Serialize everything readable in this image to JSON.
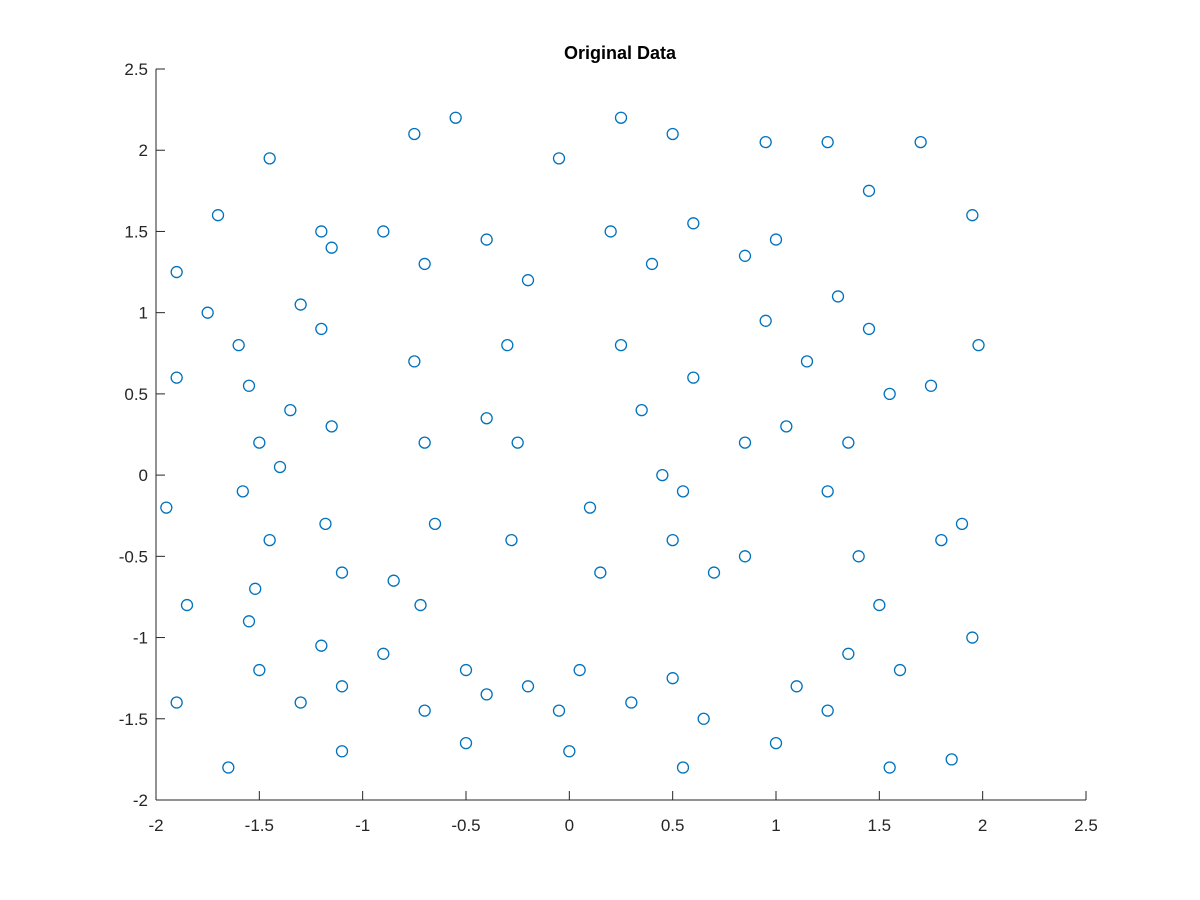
{
  "chart_data": {
    "type": "scatter",
    "title": "Original Data",
    "xlabel": "",
    "ylabel": "",
    "xlim": [
      -2,
      2.5
    ],
    "ylim": [
      -2,
      2.5
    ],
    "x_ticks": [
      -2,
      -1.5,
      -1,
      -0.5,
      0,
      0.5,
      1,
      1.5,
      2,
      2.5
    ],
    "y_ticks": [
      -2,
      -1.5,
      -1,
      -0.5,
      0,
      0.5,
      1,
      1.5,
      2,
      2.5
    ],
    "x_tick_labels": [
      "-2",
      "-1.5",
      "-1",
      "-0.5",
      "0",
      "0.5",
      "1",
      "1.5",
      "2",
      "2.5"
    ],
    "y_tick_labels": [
      "-2",
      "-1.5",
      "-1",
      "-0.5",
      "0",
      "0.5",
      "1",
      "1.5",
      "2",
      "2.5"
    ],
    "grid": false,
    "marker": "circle-open",
    "marker_color": "#0072BD",
    "series": [
      {
        "points": [
          [
            -1.55,
            0.55
          ],
          [
            -1.5,
            0.2
          ],
          [
            -1.58,
            -0.1
          ],
          [
            -1.45,
            -0.4
          ],
          [
            -1.52,
            -0.7
          ],
          [
            -1.6,
            0.8
          ],
          [
            -1.4,
            0.05
          ],
          [
            -1.55,
            -0.9
          ],
          [
            -1.5,
            -1.2
          ],
          [
            -1.3,
            -1.4
          ],
          [
            -1.1,
            -1.3
          ],
          [
            -0.9,
            -1.1
          ],
          [
            -0.7,
            -1.45
          ],
          [
            -0.5,
            -1.2
          ],
          [
            -0.4,
            -1.35
          ],
          [
            -1.2,
            -1.05
          ],
          [
            -1.15,
            1.4
          ],
          [
            -0.9,
            1.5
          ],
          [
            -0.7,
            1.3
          ],
          [
            -0.4,
            1.45
          ],
          [
            -0.2,
            1.2
          ],
          [
            -1.2,
            0.9
          ],
          [
            -1.15,
            0.3
          ],
          [
            -1.18,
            -0.3
          ],
          [
            -1.1,
            -0.6
          ],
          [
            -0.75,
            0.7
          ],
          [
            -0.7,
            0.2
          ],
          [
            -0.65,
            -0.3
          ],
          [
            -0.72,
            -0.8
          ],
          [
            -0.3,
            0.8
          ],
          [
            -0.25,
            0.2
          ],
          [
            -0.28,
            -0.4
          ],
          [
            0.2,
            1.5
          ],
          [
            0.4,
            1.3
          ],
          [
            0.6,
            1.55
          ],
          [
            0.85,
            1.35
          ],
          [
            1.0,
            1.45
          ],
          [
            0.25,
            0.8
          ],
          [
            0.35,
            0.4
          ],
          [
            0.45,
            0.0
          ],
          [
            0.5,
            -0.4
          ],
          [
            0.6,
            0.6
          ],
          [
            0.55,
            -0.1
          ],
          [
            0.1,
            -0.2
          ],
          [
            0.15,
            -0.6
          ],
          [
            0.05,
            -1.2
          ],
          [
            0.3,
            -1.4
          ],
          [
            0.5,
            -1.25
          ],
          [
            0.65,
            -1.5
          ],
          [
            -0.2,
            -1.3
          ],
          [
            -0.05,
            -1.45
          ],
          [
            1.3,
            1.1
          ],
          [
            1.45,
            0.9
          ],
          [
            1.55,
            0.5
          ],
          [
            1.35,
            0.2
          ],
          [
            1.25,
            -0.1
          ],
          [
            1.4,
            -0.5
          ],
          [
            1.5,
            -0.8
          ],
          [
            1.35,
            -1.1
          ],
          [
            1.1,
            -1.3
          ],
          [
            1.25,
            -1.45
          ],
          [
            1.6,
            -1.2
          ],
          [
            1.05,
            0.3
          ],
          [
            1.15,
            0.7
          ],
          [
            -1.9,
            1.25
          ],
          [
            -1.7,
            1.6
          ],
          [
            -1.45,
            1.95
          ],
          [
            -1.2,
            1.5
          ],
          [
            -0.75,
            2.1
          ],
          [
            -0.55,
            2.2
          ],
          [
            -0.05,
            1.95
          ],
          [
            0.25,
            2.2
          ],
          [
            0.5,
            2.1
          ],
          [
            0.95,
            2.05
          ],
          [
            1.25,
            2.05
          ],
          [
            1.45,
            1.75
          ],
          [
            1.7,
            2.05
          ],
          [
            1.95,
            1.6
          ],
          [
            1.98,
            0.8
          ],
          [
            1.9,
            -0.3
          ],
          [
            1.95,
            -1.0
          ],
          [
            1.85,
            -1.75
          ],
          [
            1.55,
            -1.8
          ],
          [
            1.0,
            -1.65
          ],
          [
            0.55,
            -1.8
          ],
          [
            0.0,
            -1.7
          ],
          [
            -0.5,
            -1.65
          ],
          [
            -1.1,
            -1.7
          ],
          [
            -1.65,
            -1.8
          ],
          [
            -1.9,
            -1.4
          ],
          [
            -1.85,
            -0.8
          ],
          [
            -1.95,
            -0.2
          ],
          [
            -1.9,
            0.6
          ],
          [
            -1.75,
            1.0
          ],
          [
            -0.4,
            0.35
          ],
          [
            0.85,
            0.2
          ],
          [
            0.7,
            -0.6
          ],
          [
            0.85,
            -0.5
          ],
          [
            -0.85,
            -0.65
          ],
          [
            -1.35,
            0.4
          ],
          [
            1.75,
            0.55
          ],
          [
            1.8,
            -0.4
          ],
          [
            0.95,
            0.95
          ],
          [
            -1.3,
            1.05
          ]
        ]
      }
    ]
  }
}
